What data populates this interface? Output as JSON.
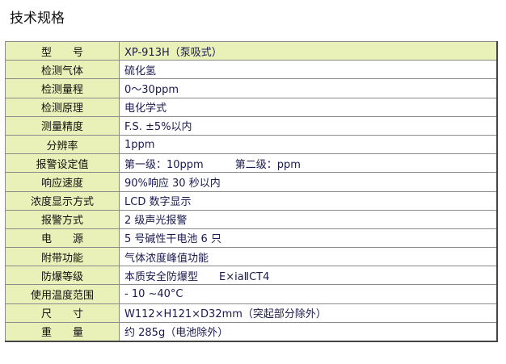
{
  "title": "技术规格",
  "rows": [
    {
      "label": "型　　号",
      "value": "XP-913H（泵吸式）"
    },
    {
      "label": "检测气体",
      "value": "硫化氢"
    },
    {
      "label": "检测量程",
      "value": "0～30ppm"
    },
    {
      "label": "检测原理",
      "value": "电化学式"
    },
    {
      "label": "测量精度",
      "value": "F.S. ±5%以内"
    },
    {
      "label": "分辨率",
      "value": "1ppm"
    },
    {
      "label": "报警设定值",
      "value": "第一级：10ppm　　　第二级：ppm"
    },
    {
      "label": "响应速度",
      "value": "90%响应 30 秒以内"
    },
    {
      "label": "浓度显示方式",
      "value": "LCD 数字显示"
    },
    {
      "label": "报警方式",
      "value": "2 级声光报警"
    },
    {
      "label": "电　　源",
      "value": "5 号碱性干电池 6 只"
    },
    {
      "label": "附带功能",
      "value": "气体浓度峰值功能"
    },
    {
      "label": "防爆等级",
      "value": "本质安全防爆型　　E×iaⅡCT4"
    },
    {
      "label": "使用温度范围",
      "value": " - 10 ~40°C"
    },
    {
      "label": "尺　　寸",
      "value": "W112×H121×D32mm（突起部分除外）"
    },
    {
      "label": "重　　量",
      "value": "约 285g（电池除外）"
    }
  ]
}
